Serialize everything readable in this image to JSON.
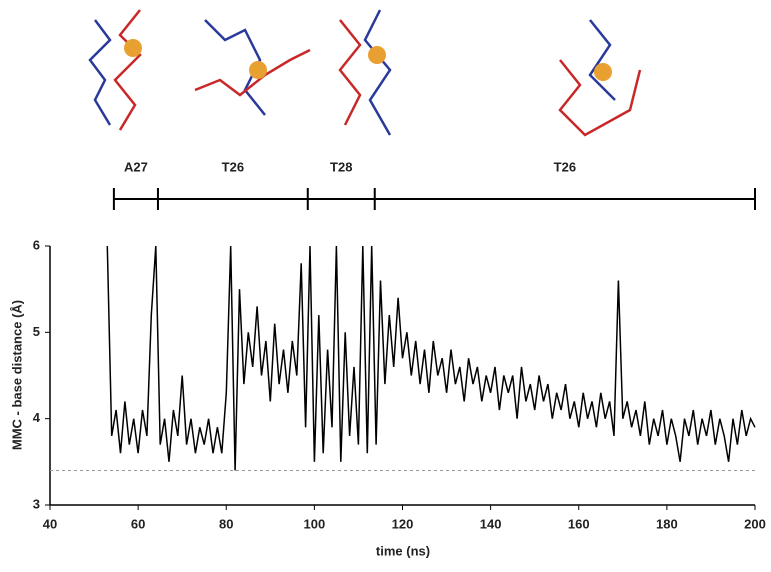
{
  "chart_data": {
    "type": "line",
    "x_label": "time (ns)",
    "y_label": "MMC - base distance (Å)",
    "x": [
      53,
      54,
      55,
      56,
      57,
      58,
      59,
      60,
      61,
      62,
      63,
      64,
      65,
      66,
      67,
      68,
      69,
      70,
      71,
      72,
      73,
      74,
      75,
      76,
      77,
      78,
      79,
      80,
      81,
      82,
      83,
      84,
      85,
      86,
      87,
      88,
      89,
      90,
      91,
      92,
      93,
      94,
      95,
      96,
      97,
      98,
      99,
      100,
      101,
      102,
      103,
      104,
      105,
      106,
      107,
      108,
      109,
      110,
      111,
      112,
      113,
      114,
      115,
      116,
      117,
      118,
      119,
      120,
      121,
      122,
      123,
      124,
      125,
      126,
      127,
      128,
      129,
      130,
      131,
      132,
      133,
      134,
      135,
      136,
      137,
      138,
      139,
      140,
      141,
      142,
      143,
      144,
      145,
      146,
      147,
      148,
      149,
      150,
      151,
      152,
      153,
      154,
      155,
      156,
      157,
      158,
      159,
      160,
      161,
      162,
      163,
      164,
      165,
      166,
      167,
      168,
      169,
      170,
      171,
      172,
      173,
      174,
      175,
      176,
      177,
      178,
      179,
      180,
      181,
      182,
      183,
      184,
      185,
      186,
      187,
      188,
      189,
      190,
      191,
      192,
      193,
      194,
      195,
      196,
      197,
      198,
      199,
      200
    ],
    "values": [
      6.0,
      3.8,
      4.1,
      3.6,
      4.2,
      3.7,
      4.0,
      3.6,
      4.1,
      3.8,
      5.2,
      6.0,
      3.7,
      4.0,
      3.5,
      4.1,
      3.8,
      4.5,
      3.7,
      4.0,
      3.6,
      3.9,
      3.7,
      4.0,
      3.6,
      3.9,
      3.6,
      4.3,
      6.0,
      3.4,
      5.5,
      4.4,
      5.0,
      4.6,
      5.3,
      4.5,
      4.9,
      4.2,
      5.1,
      4.4,
      4.8,
      4.3,
      4.9,
      4.5,
      5.8,
      3.9,
      6.0,
      3.5,
      5.2,
      3.6,
      4.8,
      3.9,
      6.0,
      3.5,
      5.0,
      3.8,
      4.6,
      3.7,
      6.0,
      3.6,
      6.0,
      3.7,
      5.6,
      4.4,
      5.2,
      4.6,
      5.4,
      4.7,
      5.0,
      4.5,
      4.9,
      4.4,
      4.8,
      4.3,
      4.9,
      4.5,
      4.7,
      4.3,
      4.8,
      4.4,
      4.6,
      4.2,
      4.7,
      4.4,
      4.6,
      4.2,
      4.5,
      4.3,
      4.6,
      4.1,
      4.5,
      4.3,
      4.5,
      4.0,
      4.6,
      4.2,
      4.4,
      4.1,
      4.5,
      4.2,
      4.4,
      4.0,
      4.3,
      4.1,
      4.4,
      4.0,
      4.2,
      3.9,
      4.3,
      4.0,
      4.2,
      3.9,
      4.3,
      4.0,
      4.2,
      3.8,
      5.6,
      4.0,
      4.2,
      3.9,
      4.1,
      3.8,
      4.2,
      3.7,
      4.0,
      3.8,
      4.1,
      3.7,
      4.0,
      3.8,
      3.5,
      4.0,
      3.8,
      4.1,
      3.7,
      4.0,
      3.8,
      4.1,
      3.7,
      4.0,
      3.8,
      3.5,
      4.0,
      3.7,
      4.1,
      3.8,
      4.0,
      3.9
    ],
    "color": "#000000",
    "reference_line": 3.4,
    "xlim": [
      40,
      200
    ],
    "xticks": [
      40,
      60,
      80,
      100,
      120,
      140,
      160,
      180,
      200
    ],
    "ylim": [
      3,
      6
    ],
    "yticks": [
      3,
      4,
      5,
      6
    ],
    "segments": [
      {
        "label": "A27",
        "start": 54.5,
        "end": 64.5
      },
      {
        "label": "T26",
        "start": 64.5,
        "end": 98.5
      },
      {
        "label": "T28",
        "start": 98.5,
        "end": 113.7
      },
      {
        "label": "T26",
        "start": 113.7,
        "end": 200
      }
    ]
  }
}
